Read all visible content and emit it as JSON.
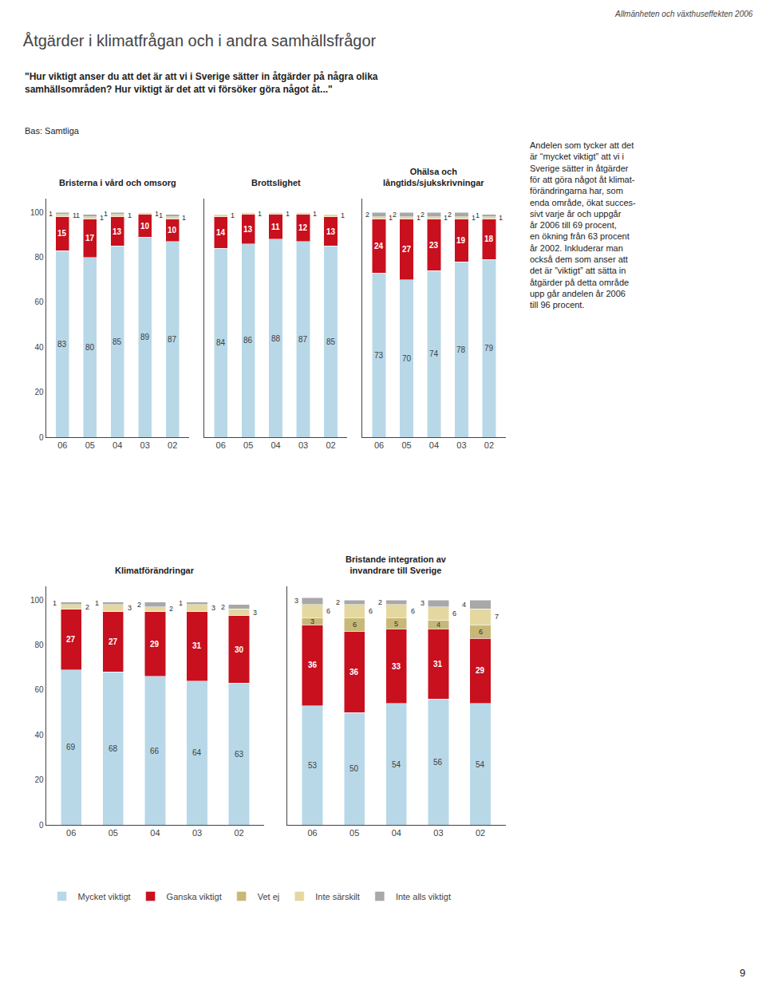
{
  "title": "Åtgärder i klimatfrågan och i andra samhällsfrågor",
  "subtitle": "\"Hur viktigt anser du att det är att vi i Sverige sätter in åtgärder på några olika\nsamhällsområden? Hur viktigt är det att vi försöker göra något åt...\"",
  "annotations": [
    "Allmänheten och växthuseffekten 2006",
    "Bas: Samtliga",
    "Andelen som tycker att det\när “mycket viktigt” att vi i\nSverige sätter in åtgärder\nför att göra något åt klimat-\nförändringarna har, som\nenda område, ökat succes-\nsivt varje år och uppgår\når 2006 till 69 procent,\nen ökning från 63 procent\når 2002. Inkluderar man\nockså dem som anser att\ndet är ”viktigt” att sätta in\nåtgärder på detta område\nupp går andelen år 2006\ntill 96 procent.",
    "9"
  ],
  "chart_data": [
    {
      "type": "bar",
      "title": "Bristerna i vård och omsorg",
      "categories": [
        "06",
        "05",
        "04",
        "03",
        "02"
      ],
      "series": [
        {
          "name": "Mycket viktigt",
          "color": "#b8d8e8",
          "values": [
            83,
            80,
            85,
            89,
            87
          ]
        },
        {
          "name": "Ganska viktigt",
          "color": "#c8101e",
          "values": [
            15,
            17,
            13,
            10,
            10
          ]
        },
        {
          "name": "Vet ej",
          "color": "#c8b878",
          "values": [
            0,
            0,
            0,
            0,
            0
          ]
        },
        {
          "name": "Inte särskilt",
          "color": "#e4d8a0",
          "values": [
            1,
            1,
            1,
            1,
            1
          ]
        },
        {
          "name": "Inte alls viktigt",
          "color": "#a8a8a8",
          "values": [
            1,
            1,
            1,
            0,
            1
          ]
        }
      ],
      "ylim": [
        0,
        106
      ],
      "yticks": [
        0,
        20,
        40,
        60,
        80,
        100
      ],
      "stacked": true,
      "data_labels": true,
      "grid": false,
      "legend": "bottom"
    },
    {
      "type": "bar",
      "title": "Brottslighet",
      "categories": [
        "06",
        "05",
        "04",
        "03",
        "02"
      ],
      "series": [
        {
          "name": "Mycket viktigt",
          "color": "#b8d8e8",
          "values": [
            84,
            86,
            88,
            87,
            85
          ]
        },
        {
          "name": "Ganska viktigt",
          "color": "#c8101e",
          "values": [
            14,
            13,
            11,
            12,
            13
          ]
        },
        {
          "name": "Vet ej",
          "color": "#c8b878",
          "values": [
            0,
            0,
            0,
            0,
            0
          ]
        },
        {
          "name": "Inte särskilt",
          "color": "#e4d8a0",
          "values": [
            1,
            1,
            1,
            1,
            1
          ]
        },
        {
          "name": "Inte alls viktigt",
          "color": "#a8a8a8",
          "values": [
            0,
            0,
            0,
            0,
            0
          ]
        }
      ],
      "ylim": [
        0,
        106
      ],
      "yticks": [
        0,
        20,
        40,
        60,
        80,
        100
      ],
      "tick_labels": "x",
      "stacked": true,
      "data_labels": true,
      "grid": false,
      "legend": "bottom"
    },
    {
      "type": "bar",
      "title": "Ohälsa och\nlångtids/sjukskrivningar",
      "categories": [
        "06",
        "05",
        "04",
        "03",
        "02"
      ],
      "series": [
        {
          "name": "Mycket viktigt",
          "color": "#b8d8e8",
          "values": [
            73,
            70,
            74,
            78,
            79
          ]
        },
        {
          "name": "Ganska viktigt",
          "color": "#c8101e",
          "values": [
            24,
            27,
            23,
            19,
            18
          ]
        },
        {
          "name": "Vet ej",
          "color": "#c8b878",
          "values": [
            0,
            0,
            0,
            0,
            0
          ]
        },
        {
          "name": "Inte särskilt",
          "color": "#e4d8a0",
          "values": [
            1,
            1,
            1,
            1,
            1
          ]
        },
        {
          "name": "Inte alls viktigt",
          "color": "#a8a8a8",
          "values": [
            2,
            2,
            2,
            2,
            1
          ]
        }
      ],
      "ylim": [
        0,
        106
      ],
      "yticks": [
        0,
        20,
        40,
        60,
        80,
        100
      ],
      "tick_labels": "x",
      "stacked": true,
      "data_labels": true,
      "grid": false,
      "legend": "bottom"
    },
    {
      "type": "bar",
      "title": "Klimatförändringar",
      "categories": [
        "06",
        "05",
        "04",
        "03",
        "02"
      ],
      "series": [
        {
          "name": "Mycket viktigt",
          "color": "#b8d8e8",
          "values": [
            69,
            68,
            66,
            64,
            63
          ]
        },
        {
          "name": "Ganska viktigt",
          "color": "#c8101e",
          "values": [
            27,
            27,
            29,
            31,
            30
          ]
        },
        {
          "name": "Vet ej",
          "color": "#c8b878",
          "values": [
            0,
            0,
            0,
            0,
            0
          ]
        },
        {
          "name": "Inte särskilt",
          "color": "#e4d8a0",
          "values": [
            2,
            3,
            2,
            3,
            3
          ]
        },
        {
          "name": "Inte alls viktigt",
          "color": "#a8a8a8",
          "values": [
            1,
            1,
            2,
            1,
            2
          ]
        }
      ],
      "ylim": [
        0,
        106
      ],
      "yticks": [
        0,
        20,
        40,
        60,
        80,
        100
      ],
      "stacked": true,
      "data_labels": true,
      "grid": false,
      "legend": "bottom"
    },
    {
      "type": "bar",
      "title": "Bristande integration av\ninvandrare till Sverige",
      "categories": [
        "06",
        "05",
        "04",
        "03",
        "02"
      ],
      "series": [
        {
          "name": "Mycket viktigt",
          "color": "#b8d8e8",
          "values": [
            53,
            50,
            54,
            56,
            54
          ]
        },
        {
          "name": "Ganska viktigt",
          "color": "#c8101e",
          "values": [
            36,
            36,
            33,
            31,
            29
          ]
        },
        {
          "name": "Vet ej",
          "color": "#c8b878",
          "values": [
            3,
            6,
            5,
            4,
            6
          ]
        },
        {
          "name": "Inte särskilt",
          "color": "#e4d8a0",
          "values": [
            6,
            6,
            6,
            6,
            7
          ]
        },
        {
          "name": "Inte alls viktigt",
          "color": "#a8a8a8",
          "values": [
            3,
            2,
            2,
            3,
            4
          ]
        }
      ],
      "ylim": [
        0,
        106
      ],
      "yticks": [
        0,
        20,
        40,
        60,
        80,
        100
      ],
      "tick_labels": "x",
      "stacked": true,
      "data_labels": true,
      "grid": false,
      "legend": "bottom"
    }
  ]
}
